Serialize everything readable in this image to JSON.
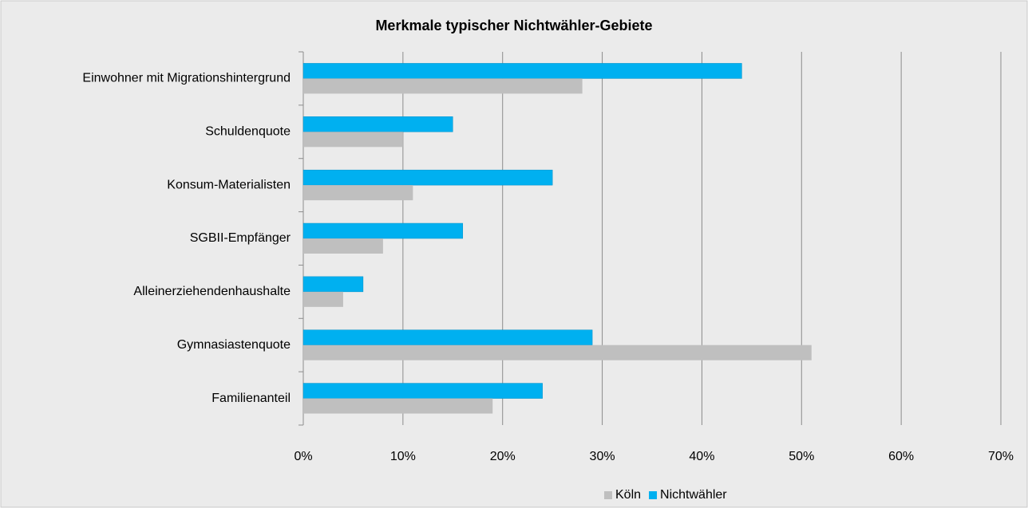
{
  "chart_data": {
    "type": "bar",
    "orientation": "horizontal",
    "title": "Merkmale typischer Nichtwähler-Gebiete",
    "categories": [
      "Einwohner mit Migrationshintergrund",
      "Schuldenquote",
      "Konsum-Materialisten",
      "SGBII-Empfänger",
      "Alleinerziehendenhaushalte",
      "Gymnasiastenquote",
      "Familienanteil"
    ],
    "series": [
      {
        "name": "Köln",
        "color": "#bfbfbf",
        "values": [
          28,
          10,
          11,
          8,
          4,
          51,
          19
        ]
      },
      {
        "name": "Nichtwähler",
        "color": "#00b0f0",
        "values": [
          44,
          15,
          25,
          16,
          6,
          29,
          24
        ]
      }
    ],
    "xlim": [
      0,
      70
    ],
    "xticks": [
      {
        "value": 0,
        "label": "0%"
      },
      {
        "value": 10,
        "label": "10%"
      },
      {
        "value": 20,
        "label": "20%"
      },
      {
        "value": 30,
        "label": "30%"
      },
      {
        "value": 40,
        "label": "40%"
      },
      {
        "value": 50,
        "label": "50%"
      },
      {
        "value": 60,
        "label": "60%"
      },
      {
        "value": 70,
        "label": "70%"
      }
    ],
    "grid": true,
    "legend": "bottom"
  }
}
